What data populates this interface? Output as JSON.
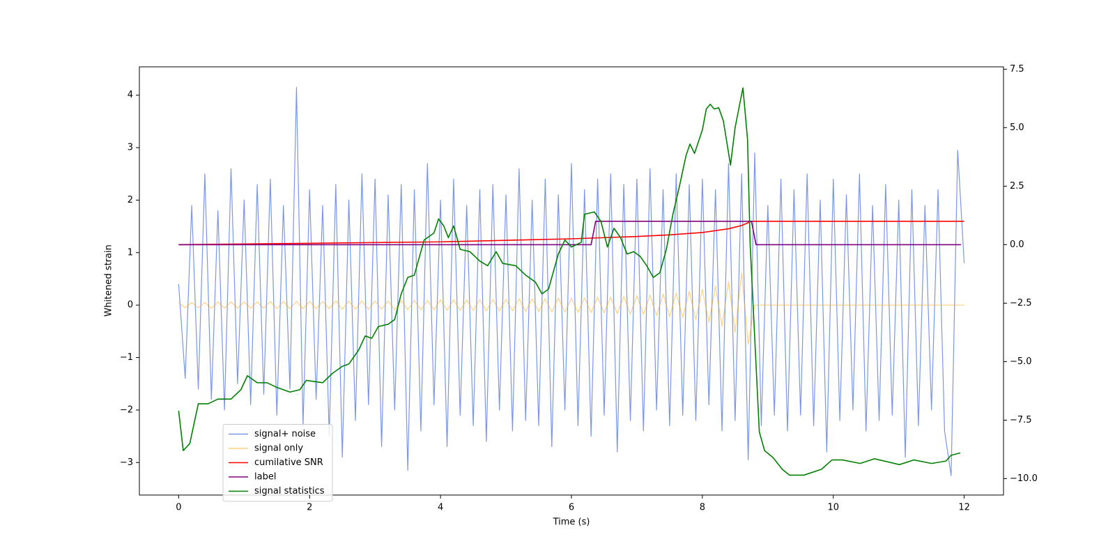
{
  "chart_data": {
    "type": "line",
    "xlabel": "Time (s)",
    "ylabel": "Whitened strain",
    "xlim": [
      -0.6,
      12.6
    ],
    "ylim": [
      -3.62,
      4.54
    ],
    "y2lim": [
      -10.7,
      7.6
    ],
    "xticks": [
      0,
      2,
      4,
      6,
      8,
      10,
      12
    ],
    "yticks": [
      {
        "value": -3,
        "label": "−3"
      },
      {
        "value": -2,
        "label": "−2"
      },
      {
        "value": -1,
        "label": "−1"
      },
      0,
      1,
      2,
      3,
      4
    ],
    "y2ticks": [
      {
        "value": -10,
        "label": "−10.0"
      },
      {
        "value": -7.5,
        "label": "−7.5"
      },
      {
        "value": -5,
        "label": "−5.0"
      },
      {
        "value": -2.5,
        "label": "−2.5"
      },
      {
        "value": 0,
        "label": "0.0"
      },
      {
        "value": 2.5,
        "label": "2.5"
      },
      {
        "value": 5,
        "label": "5.0"
      },
      {
        "value": 7.5,
        "label": "7.5"
      }
    ],
    "legend": "lower left",
    "grid": false,
    "x": [
      0.0,
      0.1,
      0.2,
      0.3,
      0.4,
      0.5,
      0.6,
      0.7,
      0.8,
      0.9,
      1.0,
      1.1,
      1.2,
      1.3,
      1.4,
      1.5,
      1.6,
      1.7,
      1.8,
      1.9,
      2.0,
      2.1,
      2.2,
      2.3,
      2.4,
      2.5,
      2.6,
      2.7,
      2.8,
      2.9,
      3.0,
      3.1,
      3.2,
      3.3,
      3.4,
      3.5,
      3.6,
      3.7,
      3.8,
      3.9,
      4.0,
      4.1,
      4.2,
      4.3,
      4.4,
      4.5,
      4.6,
      4.7,
      4.8,
      4.9,
      5.0,
      5.1,
      5.2,
      5.3,
      5.4,
      5.5,
      5.6,
      5.7,
      5.8,
      5.9,
      6.0,
      6.1,
      6.2,
      6.3,
      6.4,
      6.5,
      6.6,
      6.7,
      6.8,
      6.9,
      7.0,
      7.1,
      7.2,
      7.3,
      7.4,
      7.5,
      7.6,
      7.7,
      7.8,
      7.9,
      8.0,
      8.1,
      8.2,
      8.3,
      8.4,
      8.5,
      8.6,
      8.7,
      8.8,
      8.9,
      9.0,
      9.1,
      9.2,
      9.3,
      9.4,
      9.5,
      9.6,
      9.7,
      9.8,
      9.9,
      10.0,
      10.1,
      10.2,
      10.3,
      10.4,
      10.5,
      10.6,
      10.7,
      10.8,
      10.9,
      11.0,
      11.1,
      11.2,
      11.3,
      11.4,
      11.5,
      11.6,
      11.7,
      11.8,
      11.9,
      12.0
    ],
    "series": [
      {
        "name": "signal+ noise",
        "color": "#4169e1",
        "alpha": 0.7,
        "axis": "y",
        "values": [
          0.4,
          -1.4,
          1.9,
          -1.6,
          2.5,
          -1.8,
          1.8,
          -2.0,
          2.6,
          -1.5,
          2.0,
          -1.9,
          2.3,
          -1.7,
          2.4,
          -2.1,
          1.9,
          -1.6,
          4.15,
          -2.3,
          2.2,
          -1.8,
          1.9,
          -2.5,
          2.3,
          -2.9,
          2.0,
          -2.2,
          2.5,
          -1.9,
          2.4,
          -2.7,
          2.1,
          -2.0,
          2.3,
          -3.15,
          2.2,
          -2.4,
          2.7,
          -1.9,
          2.0,
          -2.7,
          2.4,
          -2.1,
          1.9,
          -2.3,
          2.2,
          -2.6,
          2.3,
          -2.0,
          2.1,
          -2.4,
          2.6,
          -2.2,
          2.0,
          -2.3,
          2.4,
          -2.7,
          2.1,
          -2.0,
          2.7,
          -2.3,
          2.2,
          -2.5,
          2.4,
          -2.1,
          2.5,
          -2.8,
          2.3,
          -2.2,
          2.4,
          -2.4,
          2.6,
          -2.0,
          2.2,
          -2.3,
          2.5,
          -2.1,
          2.3,
          -2.2,
          2.4,
          -1.9,
          2.2,
          -2.4,
          2.7,
          -2.2,
          2.5,
          -2.95,
          2.9,
          -2.3,
          1.9,
          -2.1,
          2.4,
          -2.4,
          2.2,
          -2.1,
          2.5,
          -2.3,
          2.0,
          -2.8,
          2.4,
          -2.2,
          2.1,
          -2.0,
          2.5,
          -2.4,
          1.9,
          -2.2,
          2.3,
          -2.1,
          2.0,
          -2.9,
          2.2,
          -2.3,
          1.9,
          -2.0,
          2.2,
          -2.4,
          -3.25,
          2.95,
          0.8
        ]
      },
      {
        "name": "signal only",
        "color": "#ffa500",
        "alpha": 0.5,
        "axis": "y",
        "values": [
          0.05,
          -0.05,
          0.05,
          -0.05,
          0.05,
          -0.06,
          0.06,
          -0.06,
          0.06,
          -0.06,
          0.06,
          -0.06,
          0.06,
          -0.06,
          0.07,
          -0.07,
          0.07,
          -0.07,
          0.07,
          -0.07,
          0.07,
          -0.07,
          0.07,
          -0.07,
          0.08,
          -0.08,
          0.08,
          -0.08,
          0.08,
          -0.08,
          0.08,
          -0.08,
          0.08,
          -0.09,
          0.09,
          -0.09,
          0.09,
          -0.09,
          0.09,
          -0.09,
          0.1,
          -0.1,
          0.1,
          -0.1,
          0.1,
          -0.1,
          0.1,
          -0.11,
          0.11,
          -0.11,
          0.11,
          -0.11,
          0.12,
          -0.12,
          0.12,
          -0.12,
          0.12,
          -0.13,
          0.13,
          -0.13,
          0.13,
          -0.14,
          0.14,
          -0.14,
          0.15,
          -0.15,
          0.15,
          -0.16,
          0.16,
          -0.17,
          0.18,
          -0.18,
          0.19,
          -0.2,
          0.21,
          -0.22,
          0.23,
          -0.24,
          0.26,
          -0.28,
          0.3,
          -0.33,
          0.36,
          -0.4,
          0.45,
          -0.52,
          0.62,
          -0.75,
          0,
          0,
          0,
          0,
          0,
          0,
          0,
          0,
          0,
          0,
          0,
          0,
          0,
          0,
          0,
          0,
          0,
          0,
          0,
          0,
          0,
          0,
          0,
          0,
          0,
          0,
          0,
          0,
          0,
          0,
          0,
          0,
          0
        ]
      },
      {
        "name": "cumilative SNR",
        "color": "#ff0000",
        "alpha": 1,
        "axis": "y2",
        "x": [
          0,
          2,
          4,
          6,
          7,
          7.5,
          8,
          8.4,
          8.6,
          8.75,
          12
        ],
        "values": [
          0,
          0.06,
          0.12,
          0.25,
          0.35,
          0.42,
          0.52,
          0.68,
          0.82,
          1.0,
          1.0
        ]
      },
      {
        "name": "label",
        "color": "#800080",
        "alpha": 1,
        "axis": "y2",
        "x": [
          0,
          6.3,
          6.37,
          8.75,
          8.82,
          11.95
        ],
        "values": [
          0,
          0,
          1,
          1,
          0,
          0
        ]
      },
      {
        "name": "signal statistics",
        "color": "#008000",
        "alpha": 1,
        "axis": "y2",
        "x": [
          0,
          0.07,
          0.17,
          0.3,
          0.45,
          0.6,
          0.8,
          0.95,
          1.05,
          1.2,
          1.35,
          1.5,
          1.7,
          1.85,
          1.95,
          2.2,
          2.35,
          2.5,
          2.6,
          2.75,
          2.85,
          2.95,
          3.05,
          3.2,
          3.3,
          3.4,
          3.5,
          3.6,
          3.75,
          3.9,
          3.97,
          4.05,
          4.12,
          4.2,
          4.3,
          4.45,
          4.6,
          4.72,
          4.85,
          4.95,
          5.15,
          5.3,
          5.45,
          5.55,
          5.65,
          5.8,
          5.9,
          6.0,
          6.15,
          6.2,
          6.35,
          6.45,
          6.55,
          6.65,
          6.75,
          6.85,
          6.95,
          7.05,
          7.15,
          7.25,
          7.35,
          7.45,
          7.55,
          7.65,
          7.75,
          7.81,
          7.88,
          8.0,
          8.06,
          8.12,
          8.18,
          8.25,
          8.32,
          8.43,
          8.5,
          8.57,
          8.62,
          8.69,
          8.73,
          8.87,
          8.95,
          9.08,
          9.22,
          9.33,
          9.55,
          9.82,
          9.98,
          10.14,
          10.41,
          10.63,
          11.01,
          11.23,
          11.5,
          11.72,
          11.8,
          11.94
        ],
        "values": [
          -7.1,
          -8.8,
          -8.5,
          -6.8,
          -6.8,
          -6.6,
          -6.6,
          -6.2,
          -5.6,
          -5.9,
          -5.9,
          -6.1,
          -6.3,
          -6.2,
          -5.8,
          -5.9,
          -5.5,
          -5.2,
          -5.1,
          -4.5,
          -3.9,
          -4.0,
          -3.5,
          -3.4,
          -3.2,
          -2.1,
          -1.4,
          -1.3,
          0.2,
          0.5,
          1.1,
          0.8,
          0.3,
          0.8,
          -0.2,
          -0.3,
          -0.7,
          -0.9,
          -0.3,
          -0.8,
          -0.9,
          -1.3,
          -1.6,
          -2.1,
          -1.9,
          -0.4,
          0.2,
          -0.1,
          0.1,
          1.3,
          1.4,
          1.0,
          -0.1,
          0.7,
          0.3,
          -0.4,
          -0.3,
          -0.5,
          -0.9,
          -1.4,
          -1.2,
          -0.2,
          1.3,
          2.5,
          3.8,
          4.3,
          3.9,
          4.9,
          5.8,
          6.0,
          5.8,
          5.85,
          5.3,
          3.4,
          5.0,
          6.0,
          6.7,
          4.5,
          0,
          -8.0,
          -8.8,
          -9.1,
          -9.6,
          -9.85,
          -9.85,
          -9.6,
          -9.2,
          -9.2,
          -9.35,
          -9.15,
          -9.4,
          -9.2,
          -9.35,
          -9.25,
          -9.0,
          -8.9
        ]
      }
    ]
  }
}
